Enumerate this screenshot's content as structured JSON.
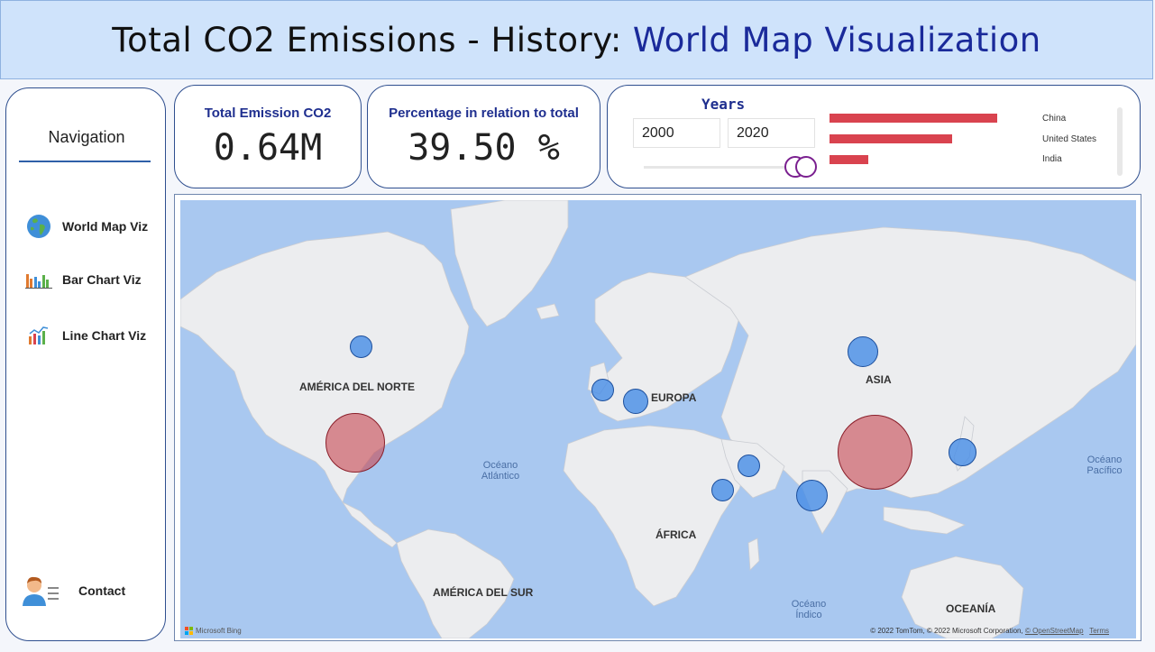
{
  "header": {
    "title_part1": "Total CO2 Emissions - History:",
    "title_part2": "World Map Visualization"
  },
  "nav": {
    "title": "Navigation",
    "items": [
      {
        "label": "World Map Viz",
        "icon": "globe-icon"
      },
      {
        "label": "Bar Chart Viz",
        "icon": "bar-chart-icon"
      },
      {
        "label": "Line Chart Viz",
        "icon": "line-chart-icon"
      }
    ],
    "contact": {
      "label": "Contact",
      "icon": "contact-person-icon"
    }
  },
  "kpi": {
    "total_label": "Total Emission CO2",
    "total_value": "0.64M",
    "pct_label": "Percentage in relation to total",
    "pct_value": "39.50 %"
  },
  "years": {
    "title": "Years",
    "from": "2000",
    "to": "2020",
    "top_countries": [
      {
        "name": "China",
        "share": 1.0
      },
      {
        "name": "United States",
        "share": 0.73
      },
      {
        "name": "India",
        "share": 0.23
      }
    ]
  },
  "map": {
    "regions": {
      "north_america": "AMÉRICA DEL NORTE",
      "europe": "EUROPA",
      "asia": "ASIA",
      "africa": "ÁFRICA",
      "south_america": "AMÉRICA DEL SUR",
      "oceania": "OCEANÍA"
    },
    "oceans": {
      "atlantic_1": "Océano",
      "atlantic_2": "Atlántico",
      "pacific_1": "Océano",
      "pacific_2": "Pacífico",
      "indian_1": "Océano",
      "indian_2": "Índico"
    },
    "attribution": "© 2022 TomTom, © 2022 Microsoft Corporation,",
    "osm_link": "© OpenStreetMap",
    "terms_link": "Terms",
    "bing_label": "Microsoft Bing",
    "colors": {
      "highlight": "#d9434f",
      "bubble": "#4a8ce6",
      "accent": "#1a2a9a"
    }
  }
}
